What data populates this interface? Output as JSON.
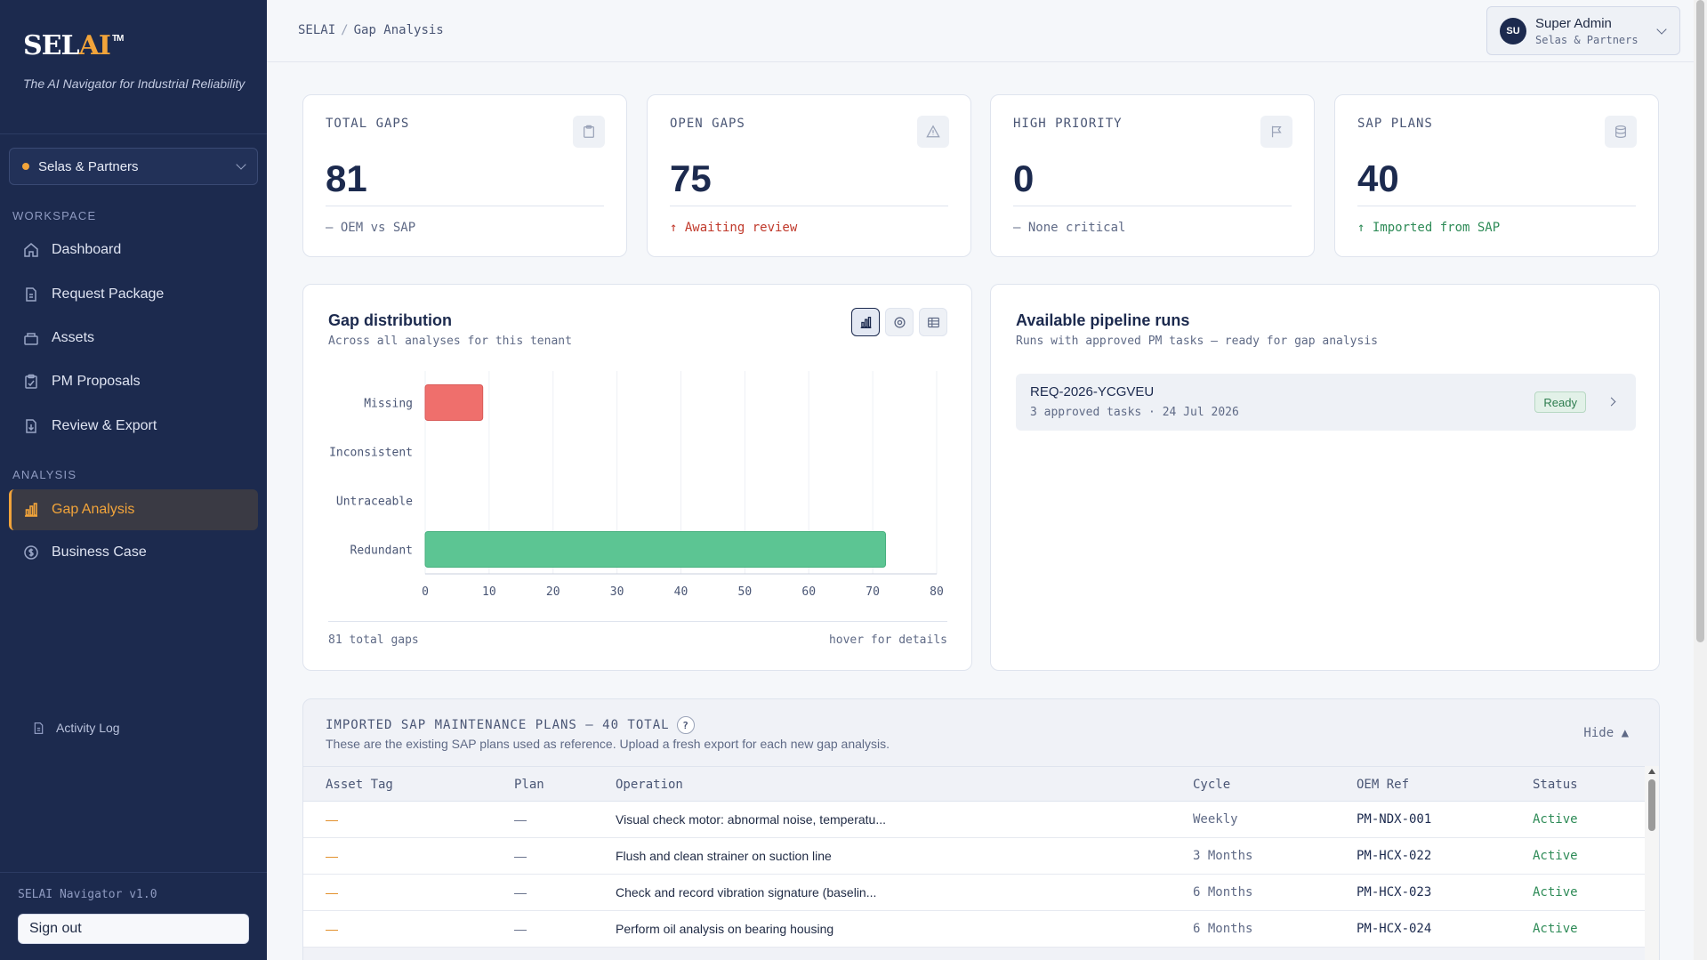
{
  "sidebar": {
    "brand_main": "SEL",
    "brand_accent": "AI",
    "brand_tm": "TM",
    "tagline": "The AI Navigator for Industrial Reliability",
    "tenant": "Selas & Partners",
    "workspace_label": "WORKSPACE",
    "workspace_items": [
      {
        "label": "Dashboard",
        "icon": "home-icon"
      },
      {
        "label": "Request Package",
        "icon": "file-icon"
      },
      {
        "label": "Assets",
        "icon": "box-icon"
      },
      {
        "label": "PM Proposals",
        "icon": "clipboard-icon"
      },
      {
        "label": "Review & Export",
        "icon": "file-export-icon"
      }
    ],
    "analysis_label": "ANALYSIS",
    "analysis_items": [
      {
        "label": "Gap Analysis",
        "icon": "bar-chart-icon",
        "active": true
      },
      {
        "label": "Business Case",
        "icon": "dollar-icon"
      }
    ],
    "activity_log": "Activity Log",
    "version": "SELAI Navigator v1.0",
    "sign_out": "Sign out"
  },
  "topbar": {
    "breadcrumb_root": "SELAI",
    "breadcrumb_sep": "/",
    "breadcrumb_page": "Gap Analysis",
    "user_initials": "SU",
    "user_name": "Super Admin",
    "user_org": "Selas & Partners"
  },
  "stats": [
    {
      "label": "TOTAL GAPS",
      "value": "81",
      "sub": "— OEM vs SAP",
      "icon": "clipboard-icon",
      "tone": "neutral"
    },
    {
      "label": "OPEN GAPS",
      "value": "75",
      "sub": "↑ Awaiting review",
      "icon": "warning-icon",
      "tone": "red"
    },
    {
      "label": "HIGH PRIORITY",
      "value": "0",
      "sub": "— None critical",
      "icon": "flag-icon",
      "tone": "neutral"
    },
    {
      "label": "SAP PLANS",
      "value": "40",
      "sub": "↑ Imported from SAP",
      "icon": "database-icon",
      "tone": "green"
    }
  ],
  "chart_card": {
    "title": "Gap distribution",
    "subtitle": "Across all analyses for this tenant",
    "footer_left": "81 total gaps",
    "footer_right": "hover for details",
    "view_icons": [
      "bar-chart-icon",
      "donut-icon",
      "table-icon"
    ]
  },
  "chart_data": {
    "type": "bar",
    "orientation": "horizontal",
    "categories": [
      "Missing",
      "Inconsistent",
      "Untraceable",
      "Redundant"
    ],
    "values": [
      9,
      0,
      0,
      72
    ],
    "colors": [
      "#ef6f6c",
      "#f2a43a",
      "#8e9ac0",
      "#5cc593"
    ],
    "xlim": [
      0,
      80
    ],
    "xticks": [
      0,
      10,
      20,
      30,
      40,
      50,
      60,
      70,
      80
    ],
    "grid": true
  },
  "pipeline_card": {
    "title": "Available pipeline runs",
    "subtitle": "Runs with approved PM tasks — ready for gap analysis",
    "runs": [
      {
        "id": "REQ-2026-YCGVEU",
        "meta": "3 approved tasks · 24 Jul 2026",
        "status": "Ready"
      }
    ]
  },
  "sap_table": {
    "title": "IMPORTED SAP MAINTENANCE PLANS — 40 TOTAL",
    "help": "?",
    "subtitle": "These are the existing SAP plans used as reference. Upload a fresh export for each new gap analysis.",
    "hide_label": "Hide ▲",
    "columns": [
      "Asset Tag",
      "Plan",
      "Operation",
      "Cycle",
      "OEM Ref",
      "Status"
    ],
    "rows": [
      {
        "asset": "—",
        "plan": "—",
        "operation": "Visual check motor: abnormal noise, temperatu...",
        "cycle": "Weekly",
        "ref": "PM-NDX-001",
        "status": "Active"
      },
      {
        "asset": "—",
        "plan": "—",
        "operation": "Flush and clean strainer on suction line",
        "cycle": "3 Months",
        "ref": "PM-HCX-022",
        "status": "Active"
      },
      {
        "asset": "—",
        "plan": "—",
        "operation": "Check and record vibration signature (baselin...",
        "cycle": "6 Months",
        "ref": "PM-HCX-023",
        "status": "Active"
      },
      {
        "asset": "—",
        "plan": "—",
        "operation": "Perform oil analysis on bearing housing",
        "cycle": "6 Months",
        "ref": "PM-HCX-024",
        "status": "Active"
      }
    ]
  }
}
